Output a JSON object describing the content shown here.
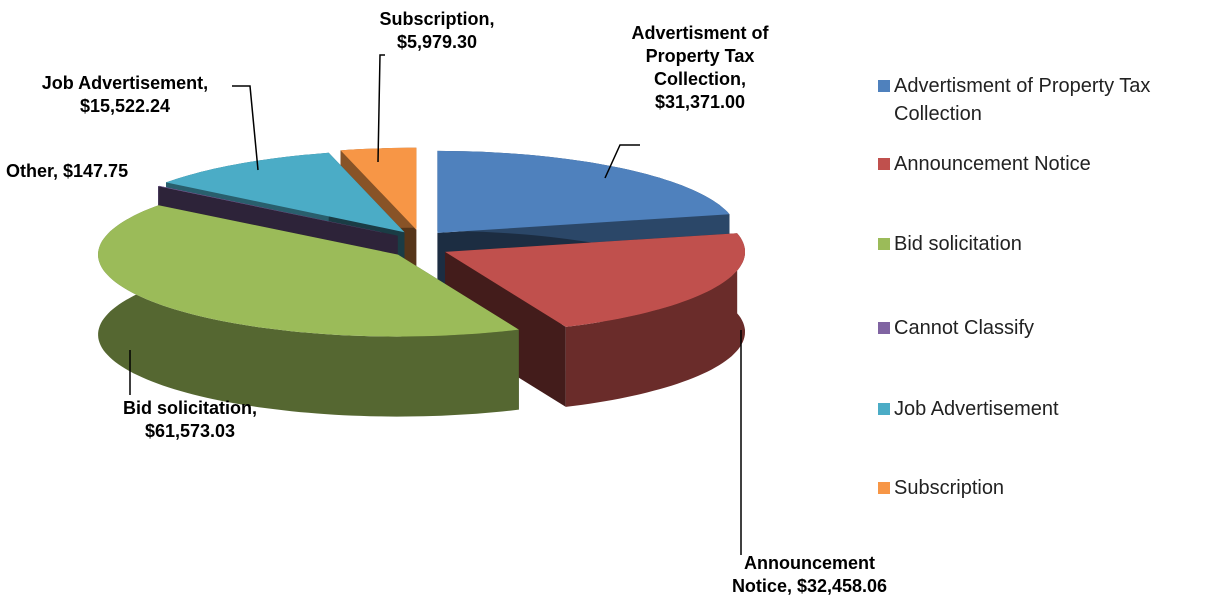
{
  "chart_data": {
    "type": "pie",
    "categories": [
      "Advertisment of Property Tax Collection",
      "Announcement Notice",
      "Bid solicitation",
      "Cannot Classify",
      "Job Advertisement",
      "Subscription"
    ],
    "values": [
      31371.0,
      32458.06,
      61573.03,
      147.75,
      15522.24,
      5979.3
    ],
    "value_labels": [
      "Advertisment of Property Tax Collection, $31,371.00",
      "Announcement Notice, $32,458.06",
      "Bid solicitation, $61,573.03",
      "Other, $147.75",
      "Job Advertisement, $15,522.24",
      "Subscription, $5,979.30"
    ],
    "colors": [
      "#4f81bd",
      "#c0504d",
      "#9bbb59",
      "#8064a2",
      "#4bacc6",
      "#f79646"
    ],
    "legend": "right"
  }
}
